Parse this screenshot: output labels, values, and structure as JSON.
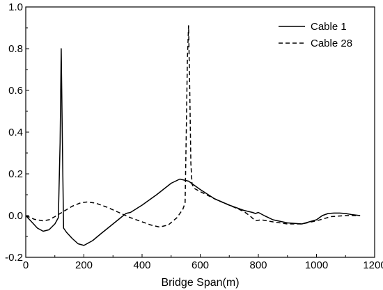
{
  "chart_data": {
    "type": "line",
    "title": "",
    "xlabel": "Bridge Span(m)",
    "ylabel": "",
    "xlim": [
      0,
      1200
    ],
    "ylim": [
      -0.2,
      1.0
    ],
    "xticks": [
      0,
      200,
      400,
      600,
      800,
      1000,
      1200
    ],
    "yticks": [
      -0.2,
      0.0,
      0.2,
      0.4,
      0.6,
      0.8,
      1.0
    ],
    "xtick_labels": [
      "0",
      "200",
      "400",
      "600",
      "800",
      "1000",
      "1200"
    ],
    "ytick_labels": [
      "-0.2",
      "0.0",
      "0.2",
      "0.4",
      "0.6",
      "0.8",
      "1.0"
    ],
    "grid": false,
    "legend_position": "top-right",
    "series": [
      {
        "name": "Cable 1",
        "line_style": "solid",
        "color": "#000000",
        "x": [
          0,
          20,
          40,
          60,
          80,
          100,
          112,
          118,
          122,
          126,
          130,
          140,
          160,
          180,
          200,
          230,
          260,
          300,
          340,
          345,
          350,
          360,
          400,
          450,
          500,
          530,
          560,
          600,
          650,
          700,
          750,
          780,
          790,
          800,
          820,
          850,
          900,
          950,
          1000,
          1020,
          1040,
          1060,
          1080,
          1100,
          1120,
          1150
        ],
        "y": [
          0.0,
          -0.03,
          -0.06,
          -0.075,
          -0.068,
          -0.04,
          -0.01,
          0.35,
          0.8,
          0.35,
          -0.06,
          -0.08,
          -0.11,
          -0.135,
          -0.143,
          -0.12,
          -0.085,
          -0.04,
          0.005,
          0.01,
          0.012,
          0.015,
          0.05,
          0.1,
          0.155,
          0.175,
          0.165,
          0.125,
          0.08,
          0.05,
          0.025,
          0.015,
          0.01,
          0.015,
          0.0,
          -0.02,
          -0.035,
          -0.04,
          -0.02,
          0.0,
          0.01,
          0.012,
          0.012,
          0.01,
          0.005,
          0.0
        ]
      },
      {
        "name": "Cable 28",
        "line_style": "dashed",
        "color": "#000000",
        "x": [
          0,
          30,
          60,
          80,
          100,
          130,
          160,
          190,
          210,
          240,
          280,
          320,
          360,
          400,
          430,
          460,
          490,
          520,
          540,
          548,
          552,
          556,
          560,
          564,
          568,
          572,
          580,
          600,
          650,
          700,
          750,
          770,
          790,
          810,
          850,
          900,
          950,
          1000,
          1050,
          1100,
          1150
        ],
        "y": [
          0.0,
          -0.018,
          -0.025,
          -0.02,
          -0.005,
          0.02,
          0.045,
          0.062,
          0.065,
          0.06,
          0.04,
          0.015,
          -0.01,
          -0.03,
          -0.045,
          -0.055,
          -0.045,
          -0.01,
          0.03,
          0.06,
          0.4,
          0.75,
          0.91,
          0.6,
          0.25,
          0.15,
          0.13,
          0.115,
          0.08,
          0.05,
          0.02,
          0.0,
          -0.025,
          -0.02,
          -0.03,
          -0.04,
          -0.04,
          -0.025,
          -0.005,
          0.0,
          0.0
        ]
      }
    ]
  }
}
